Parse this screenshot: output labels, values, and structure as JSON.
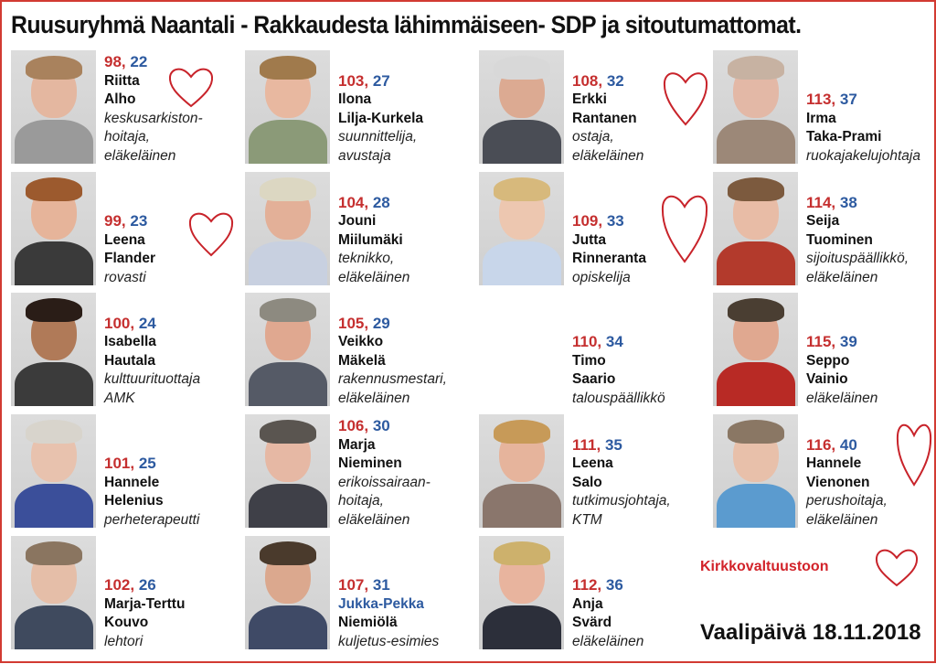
{
  "title": "Ruusuryhmä Naantali - Rakkaudesta lähimmäiseen- SDP ja sitoutumattomat.",
  "colors": {
    "red_number": "#c52f2f",
    "blue_number": "#2d5aa0",
    "border": "#d23a32",
    "heart": "#c8232a"
  },
  "candidates": [
    {
      "num_red": "98,",
      "num_blue": "22",
      "first": "Riitta",
      "last": "Alho",
      "job1": "keskusarkiston-",
      "job2": "hoitaja,",
      "job3": "eläkeläinen"
    },
    {
      "num_red": "99,",
      "num_blue": "23",
      "first": "Leena",
      "last": "Flander",
      "job1": "rovasti",
      "job2": "",
      "job3": ""
    },
    {
      "num_red": "100,",
      "num_blue": "24",
      "first": "Isabella",
      "last": "Hautala",
      "job1": "kulttuurituottaja",
      "job2": "AMK",
      "job3": ""
    },
    {
      "num_red": "101,",
      "num_blue": "25",
      "first": "Hannele",
      "last": "Helenius",
      "job1": "perheterapeutti",
      "job2": "",
      "job3": ""
    },
    {
      "num_red": "102,",
      "num_blue": "26",
      "first": "Marja-Terttu",
      "last": "Kouvo",
      "job1": "lehtori",
      "job2": "",
      "job3": ""
    },
    {
      "num_red": "103,",
      "num_blue": "27",
      "first": "Ilona",
      "last": "Lilja-Kurkela",
      "job1": "suunnittelija,",
      "job2": "avustaja",
      "job3": ""
    },
    {
      "num_red": "104,",
      "num_blue": "28",
      "first": "Jouni",
      "last": "Miilumäki",
      "job1": "teknikko,",
      "job2": "eläkeläinen",
      "job3": ""
    },
    {
      "num_red": "105,",
      "num_blue": "29",
      "first": "Veikko",
      "last": "Mäkelä",
      "job1": "rakennusmestari,",
      "job2": "eläkeläinen",
      "job3": ""
    },
    {
      "num_red": "106,",
      "num_blue": "30",
      "first": "Marja",
      "last": "Nieminen",
      "job1": "erikoissairaan-",
      "job2": "hoitaja,",
      "job3": "eläkeläinen"
    },
    {
      "num_red": "107,",
      "num_blue": "31",
      "first": "Jukka-Pekka",
      "last": "Niemiölä",
      "job1": "kuljetus-esimies",
      "job2": "",
      "job3": ""
    },
    {
      "num_red": "108,",
      "num_blue": "32",
      "first": "Erkki",
      "last": "Rantanen",
      "job1": "ostaja,",
      "job2": "eläkeläinen",
      "job3": ""
    },
    {
      "num_red": "109,",
      "num_blue": "33",
      "first": "Jutta",
      "last": "Rinneranta",
      "job1": "opiskelija",
      "job2": "",
      "job3": ""
    },
    {
      "num_red": "110,",
      "num_blue": "34",
      "first": "Timo",
      "last": "Saario",
      "job1": "talouspäällikkö",
      "job2": "",
      "job3": ""
    },
    {
      "num_red": "111,",
      "num_blue": "35",
      "first": "Leena",
      "last": "Salo",
      "job1": "tutkimusjohtaja,",
      "job2": "KTM",
      "job3": ""
    },
    {
      "num_red": "112,",
      "num_blue": "36",
      "first": "Anja",
      "last": "Svärd",
      "job1": "eläkeläinen",
      "job2": "",
      "job3": ""
    },
    {
      "num_red": "113,",
      "num_blue": "37",
      "first": "Irma",
      "last": "Taka-Prami",
      "job1": "ruokajakelujohtaja",
      "job2": "",
      "job3": ""
    },
    {
      "num_red": "114,",
      "num_blue": "38",
      "first": "Seija",
      "last": "Tuominen",
      "job1": "sijoituspäällikkö,",
      "job2": "eläkeläinen",
      "job3": ""
    },
    {
      "num_red": "115,",
      "num_blue": "39",
      "first": "Seppo",
      "last": "Vainio",
      "job1": "eläkeläinen",
      "job2": "",
      "job3": ""
    },
    {
      "num_red": "116,",
      "num_blue": "40",
      "first": "Hannele",
      "last": "Vienonen",
      "job1": "perushoitaja,",
      "job2": "eläkeläinen",
      "job3": ""
    }
  ],
  "kirkko_label": "Kirkkovaltuustoon",
  "election_day": "Vaalipäivä 18.11.2018"
}
